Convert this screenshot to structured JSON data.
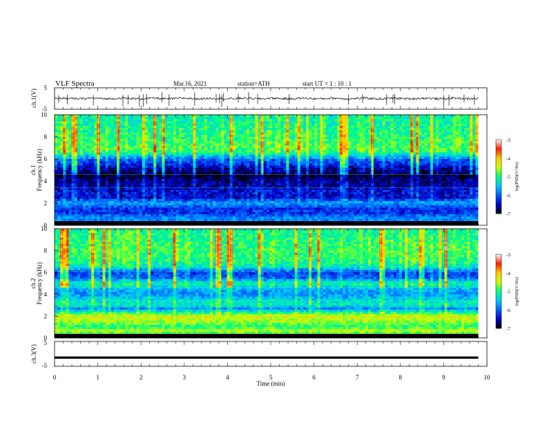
{
  "header": {
    "title": "VLF  Spectra",
    "date": "Mar.16, 2021",
    "station": "station=ATH",
    "start": "start  UT  =    1  : 10 : 1"
  },
  "chart_data": [
    {
      "type": "line",
      "name": "ch1-waveform",
      "ylabel": "ch.1(V)",
      "ylim": [
        -5,
        5
      ],
      "yticks": [
        "5",
        "-5"
      ],
      "xlim": [
        0,
        10
      ],
      "baseline": 0,
      "noise_amplitude": 0.5,
      "end_time_min": 9.8
    },
    {
      "type": "heatmap",
      "name": "ch1-spectrogram",
      "ylabel": "ch.1\nFrequency (kHz)",
      "ylim": [
        0,
        10
      ],
      "yticks": [
        "10",
        "8",
        "6",
        "4",
        "2",
        "0"
      ],
      "xlim": [
        0,
        10
      ],
      "end_time_min": 9.8,
      "profile_freq_khz": [
        0.0,
        0.4,
        0.8,
        1.0,
        1.5,
        2.0,
        2.2,
        2.5,
        3.0,
        3.5,
        4.0,
        4.5,
        5.0,
        5.5,
        6.0,
        6.3,
        6.6,
        7.0,
        8.0,
        9.0,
        10.0
      ],
      "profile_log_psd": [
        -6.8,
        -5.8,
        -5.8,
        -6.2,
        -6.2,
        -5.7,
        -5.9,
        -6.5,
        -6.4,
        -6.6,
        -6.7,
        -6.9,
        -6.7,
        -6.3,
        -6.0,
        -5.5,
        -5.0,
        -4.9,
        -5.0,
        -5.1,
        -5.2
      ]
    },
    {
      "type": "heatmap",
      "name": "ch2-spectrogram",
      "ylabel": "ch.2\nFrequency (kHz)",
      "ylim": [
        0,
        10
      ],
      "yticks": [
        "10",
        "8",
        "6",
        "4",
        "2",
        "0"
      ],
      "xlim": [
        0,
        10
      ],
      "end_time_min": 9.8,
      "profile_freq_khz": [
        0.0,
        0.3,
        0.7,
        1.0,
        1.5,
        2.0,
        2.3,
        2.7,
        3.0,
        3.5,
        4.0,
        4.5,
        5.0,
        5.5,
        6.0,
        6.5,
        7.0,
        8.0,
        9.0,
        10.0
      ],
      "profile_log_psd": [
        -6.0,
        -5.0,
        -4.5,
        -5.0,
        -4.6,
        -4.3,
        -5.0,
        -5.8,
        -5.2,
        -5.4,
        -5.8,
        -5.6,
        -5.1,
        -6.0,
        -6.2,
        -5.3,
        -5.0,
        -4.9,
        -5.0,
        -5.1
      ]
    },
    {
      "type": "line",
      "name": "ch3-waveform",
      "ylabel": "ch.3(V)",
      "ylim": [
        -5,
        5
      ],
      "yticks": [
        "5",
        "-5"
      ],
      "xlim": [
        0,
        10
      ],
      "baseline": -1.5,
      "end_time_min": 9.8
    }
  ],
  "xaxis": {
    "label": "Time  (min)",
    "ticks": [
      "0",
      "1",
      "2",
      "3",
      "4",
      "5",
      "6",
      "7",
      "8",
      "9",
      "10"
    ]
  },
  "colorbar": {
    "label": "log(PSD)(V²/Hz)",
    "ticks": [
      "-3",
      "-4",
      "-5",
      "-6",
      "-7"
    ],
    "range": [
      -7,
      -3
    ],
    "stops": [
      "#000000",
      "#0000c8",
      "#0060ff",
      "#00c8ff",
      "#00ff80",
      "#c8ff00",
      "#ffc800",
      "#ff2000",
      "#ffffff"
    ]
  }
}
